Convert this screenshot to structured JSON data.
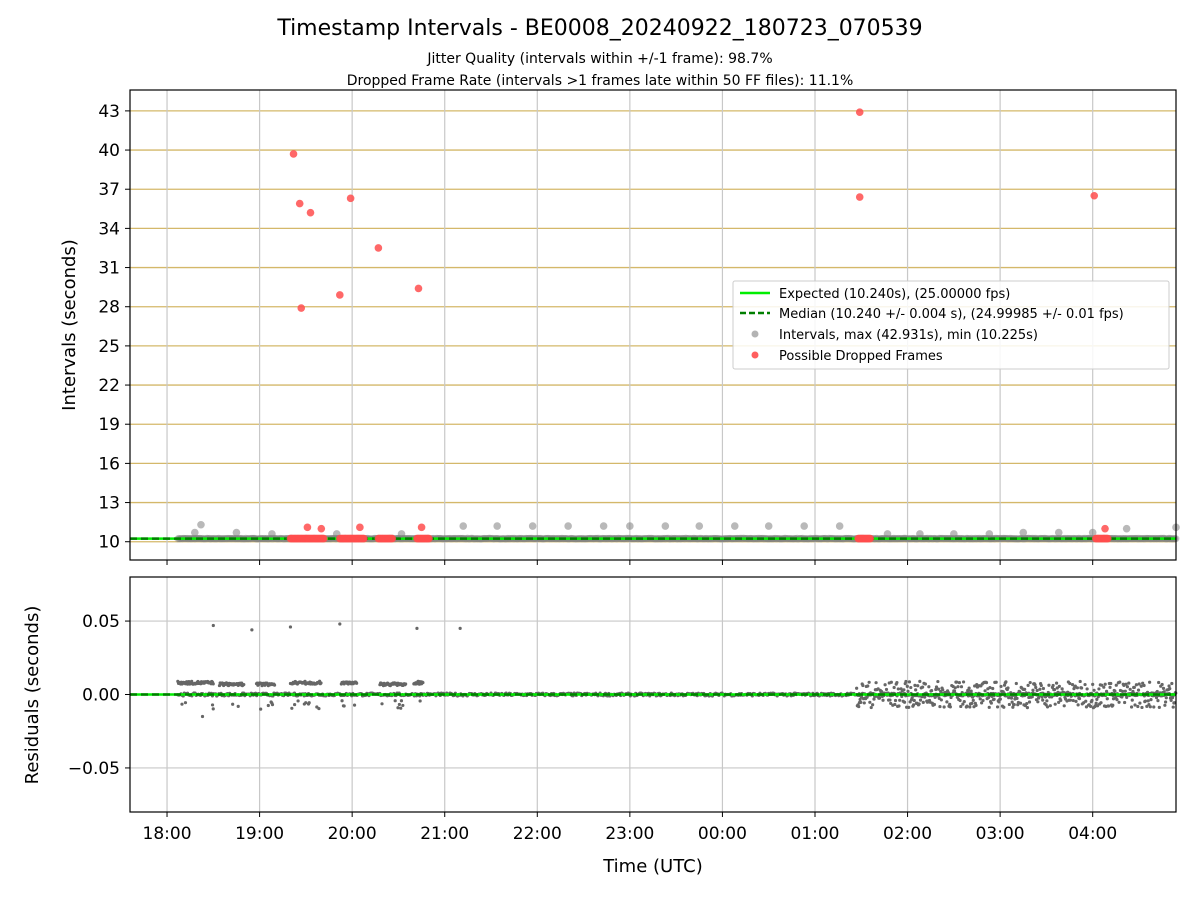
{
  "title": "Timestamp Intervals - BE0008_20240922_180723_070539",
  "subtitle1": "Jitter Quality (intervals within +/-1 frame): 98.7%",
  "subtitle2": "Dropped Frame Rate (intervals >1 frames late within 50 FF files): 11.1%",
  "colors": {
    "expected": "#00ee00",
    "median": "#007f00",
    "intervals": "#808080",
    "dropped": "#ff4d4d",
    "frame_grid": "#d4b86a",
    "grid": "#c8c8c8",
    "residual": "#666666"
  },
  "chart_data": [
    {
      "type": "scatter",
      "title": "",
      "xlabel": "",
      "ylabel": "Intervals (seconds)",
      "xlim": [
        "2024-09-22 17:36",
        "2024-09-23 04:54"
      ],
      "ylim": [
        8.6,
        44.6
      ],
      "x_ticks": [
        "18:00",
        "19:00",
        "20:00",
        "21:00",
        "22:00",
        "23:00",
        "00:00",
        "01:00",
        "02:00",
        "03:00",
        "04:00"
      ],
      "y_ticks": [
        10,
        13,
        16,
        19,
        22,
        25,
        28,
        31,
        34,
        37,
        40,
        43
      ],
      "y_tick_labels": [
        "10",
        "13",
        "16",
        "19",
        "22",
        "25",
        "28",
        "31",
        "34",
        "37",
        "40",
        "43"
      ],
      "frame_gridlines": true,
      "grid": true,
      "legend_position": "right",
      "legend": [
        "Expected (10.240s), (25.00000 fps)",
        "Median (10.240 +/- 0.004 s), (24.99985 +/- 0.01 fps)",
        "Intervals, max (42.931s), min (10.225s)",
        "Possible Dropped Frames"
      ],
      "expected_interval": 10.24,
      "median_interval": 10.24,
      "series": [
        {
          "name": "Intervals, max (42.931s), min (10.225s)",
          "note_x_format": "HH:MM",
          "points": [
            [
              "18:18",
              10.7
            ],
            [
              "18:22",
              11.3
            ],
            [
              "18:45",
              10.7
            ],
            [
              "19:08",
              10.6
            ],
            [
              "19:50",
              10.6
            ],
            [
              "20:32",
              10.6
            ],
            [
              "21:12",
              11.2
            ],
            [
              "21:34",
              11.2
            ],
            [
              "21:57",
              11.2
            ],
            [
              "22:20",
              11.2
            ],
            [
              "22:43",
              11.2
            ],
            [
              "23:00",
              11.2
            ],
            [
              "23:23",
              11.2
            ],
            [
              "23:45",
              11.2
            ],
            [
              "00:08",
              11.2
            ],
            [
              "00:30",
              11.2
            ],
            [
              "00:53",
              11.2
            ],
            [
              "01:16",
              11.2
            ],
            [
              "01:47",
              10.6
            ],
            [
              "02:08",
              10.6
            ],
            [
              "02:30",
              10.6
            ],
            [
              "02:53",
              10.6
            ],
            [
              "03:15",
              10.7
            ],
            [
              "03:38",
              10.7
            ],
            [
              "04:00",
              10.7
            ],
            [
              "04:22",
              11.0
            ],
            [
              "04:54",
              11.1
            ]
          ]
        },
        {
          "name": "Possible Dropped Frames",
          "points": [
            [
              "19:22",
              39.7
            ],
            [
              "19:26",
              35.9
            ],
            [
              "19:27",
              27.9
            ],
            [
              "19:33",
              35.2
            ],
            [
              "19:59",
              36.3
            ],
            [
              "19:52",
              28.9
            ],
            [
              "20:17",
              32.5
            ],
            [
              "20:43",
              29.4
            ],
            [
              "01:29",
              42.9
            ],
            [
              "01:29",
              36.4
            ],
            [
              "04:01",
              36.5
            ],
            [
              "19:31",
              11.1
            ],
            [
              "19:40",
              11.0
            ],
            [
              "20:05",
              11.1
            ],
            [
              "20:45",
              11.1
            ],
            [
              "04:08",
              11.0
            ]
          ],
          "clusters_at_10_24": [
            [
              "19:20",
              "19:42"
            ],
            [
              "19:52",
              "20:08"
            ],
            [
              "20:17",
              "20:26"
            ],
            [
              "20:42",
              "20:50"
            ],
            [
              "01:28",
              "01:36"
            ],
            [
              "04:02",
              "04:10"
            ]
          ]
        }
      ]
    },
    {
      "type": "scatter",
      "title": "",
      "xlabel": "Time (UTC)",
      "ylabel": "Residuals (seconds)",
      "xlim": [
        "2024-09-22 17:36",
        "2024-09-23 04:54"
      ],
      "ylim": [
        -0.08,
        0.08
      ],
      "x_ticks": [
        "18:00",
        "19:00",
        "20:00",
        "21:00",
        "22:00",
        "23:00",
        "00:00",
        "01:00",
        "02:00",
        "03:00",
        "04:00"
      ],
      "y_ticks": [
        -0.05,
        0.0,
        0.05
      ],
      "y_tick_labels": [
        "−0.05",
        "0.00",
        "0.05"
      ],
      "grid": true,
      "series": [
        {
          "name": "Residuals",
          "outliers": [
            [
              "18:30",
              0.047
            ],
            [
              "18:55",
              0.044
            ],
            [
              "19:20",
              0.046
            ],
            [
              "19:52",
              0.048
            ],
            [
              "20:42",
              0.045
            ],
            [
              "21:10",
              0.045
            ],
            [
              "18:23",
              -0.015
            ]
          ],
          "bands": [
            {
              "from": "18:07",
              "to": "18:30",
              "level": 0.008
            },
            {
              "from": "18:34",
              "to": "18:50",
              "level": 0.007
            },
            {
              "from": "18:58",
              "to": "19:10",
              "level": 0.007
            },
            {
              "from": "19:20",
              "to": "19:40",
              "level": 0.008
            },
            {
              "from": "19:53",
              "to": "20:03",
              "level": 0.008
            },
            {
              "from": "20:18",
              "to": "20:35",
              "level": 0.007
            },
            {
              "from": "20:40",
              "to": "20:46",
              "level": 0.008
            },
            {
              "from": "01:27",
              "to": "04:54",
              "level": 0.0,
              "spread": 0.009
            }
          ]
        }
      ]
    }
  ]
}
